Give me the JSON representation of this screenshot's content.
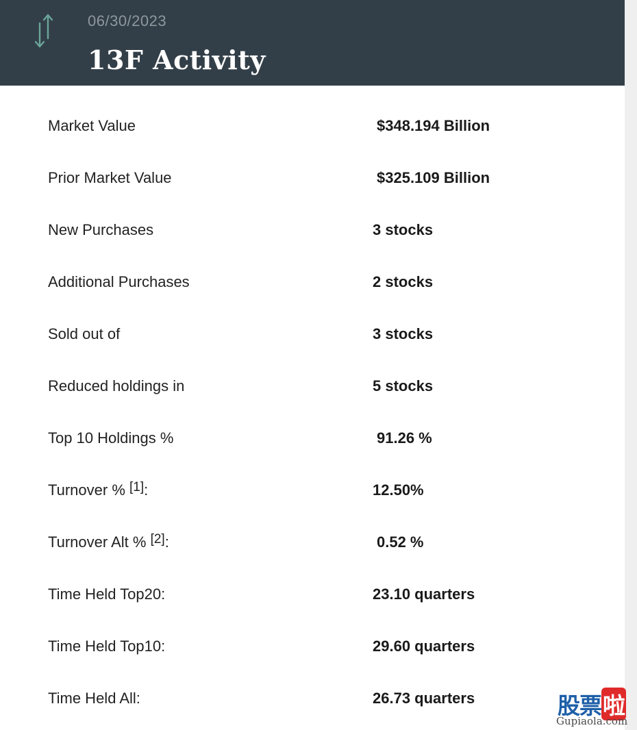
{
  "header": {
    "date": "06/30/2023",
    "title": "13F Activity",
    "icon": "up-down-arrows-icon"
  },
  "rows": [
    {
      "label": "Market Value",
      "value": "$348.194 Billion"
    },
    {
      "label": "Prior Market Value",
      "value": "$325.109 Billion"
    },
    {
      "label": "New Purchases",
      "value": "3 stocks"
    },
    {
      "label": "Additional Purchases",
      "value": "2 stocks"
    },
    {
      "label": "Sold out of",
      "value": "3 stocks"
    },
    {
      "label": "Reduced holdings in",
      "value": "5 stocks"
    },
    {
      "label": "Top 10 Holdings %",
      "value": "91.26 %"
    },
    {
      "label": "Turnover % ",
      "footnote": "[1]",
      "suffix": ":",
      "value": "12.50%"
    },
    {
      "label": "Turnover Alt % ",
      "footnote": "[2]",
      "suffix": ":",
      "value": "0.52 %"
    },
    {
      "label": "Time Held Top20:",
      "value": "23.10 quarters"
    },
    {
      "label": "Time Held Top10:",
      "value": "29.60 quarters"
    },
    {
      "label": "Time Held All:",
      "value": "26.73 quarters"
    }
  ],
  "watermark": {
    "chars": "股票",
    "chars_highlight": "啦",
    "domain": "Gupiaola.com"
  },
  "colors": {
    "header_bg": "#333f48",
    "icon_accent": "#6aa59a",
    "watermark_blue": "#1e5fa8",
    "watermark_red": "#e02a2a"
  }
}
